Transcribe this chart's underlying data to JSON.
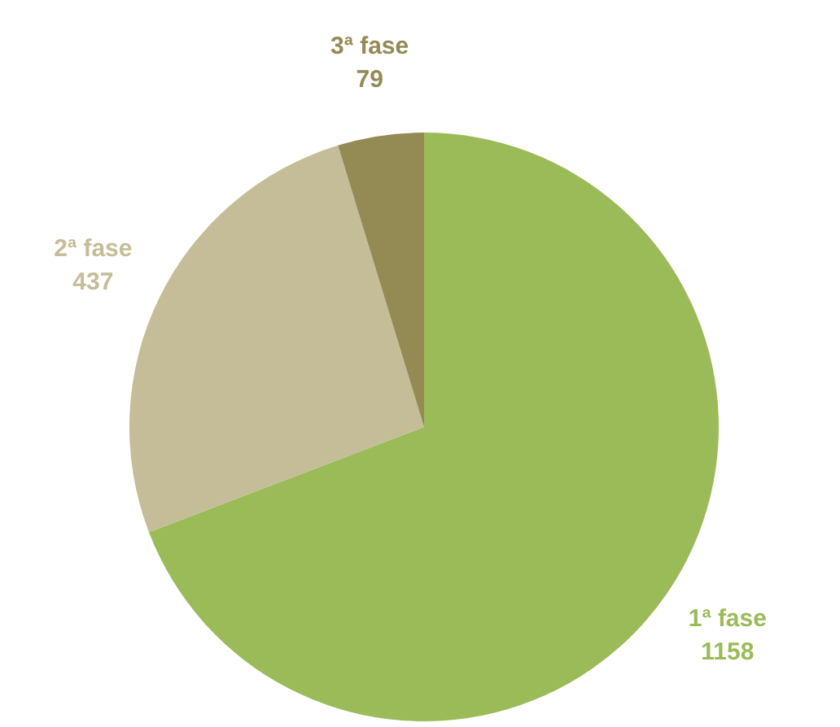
{
  "chart_data": {
    "type": "pie",
    "categories": [
      "1ª fase",
      "2ª fase",
      "3ª fase"
    ],
    "values": [
      1158,
      437,
      79
    ],
    "colors": [
      "#9bbb59",
      "#c4bd97",
      "#948a54"
    ],
    "data_labels": true
  }
}
